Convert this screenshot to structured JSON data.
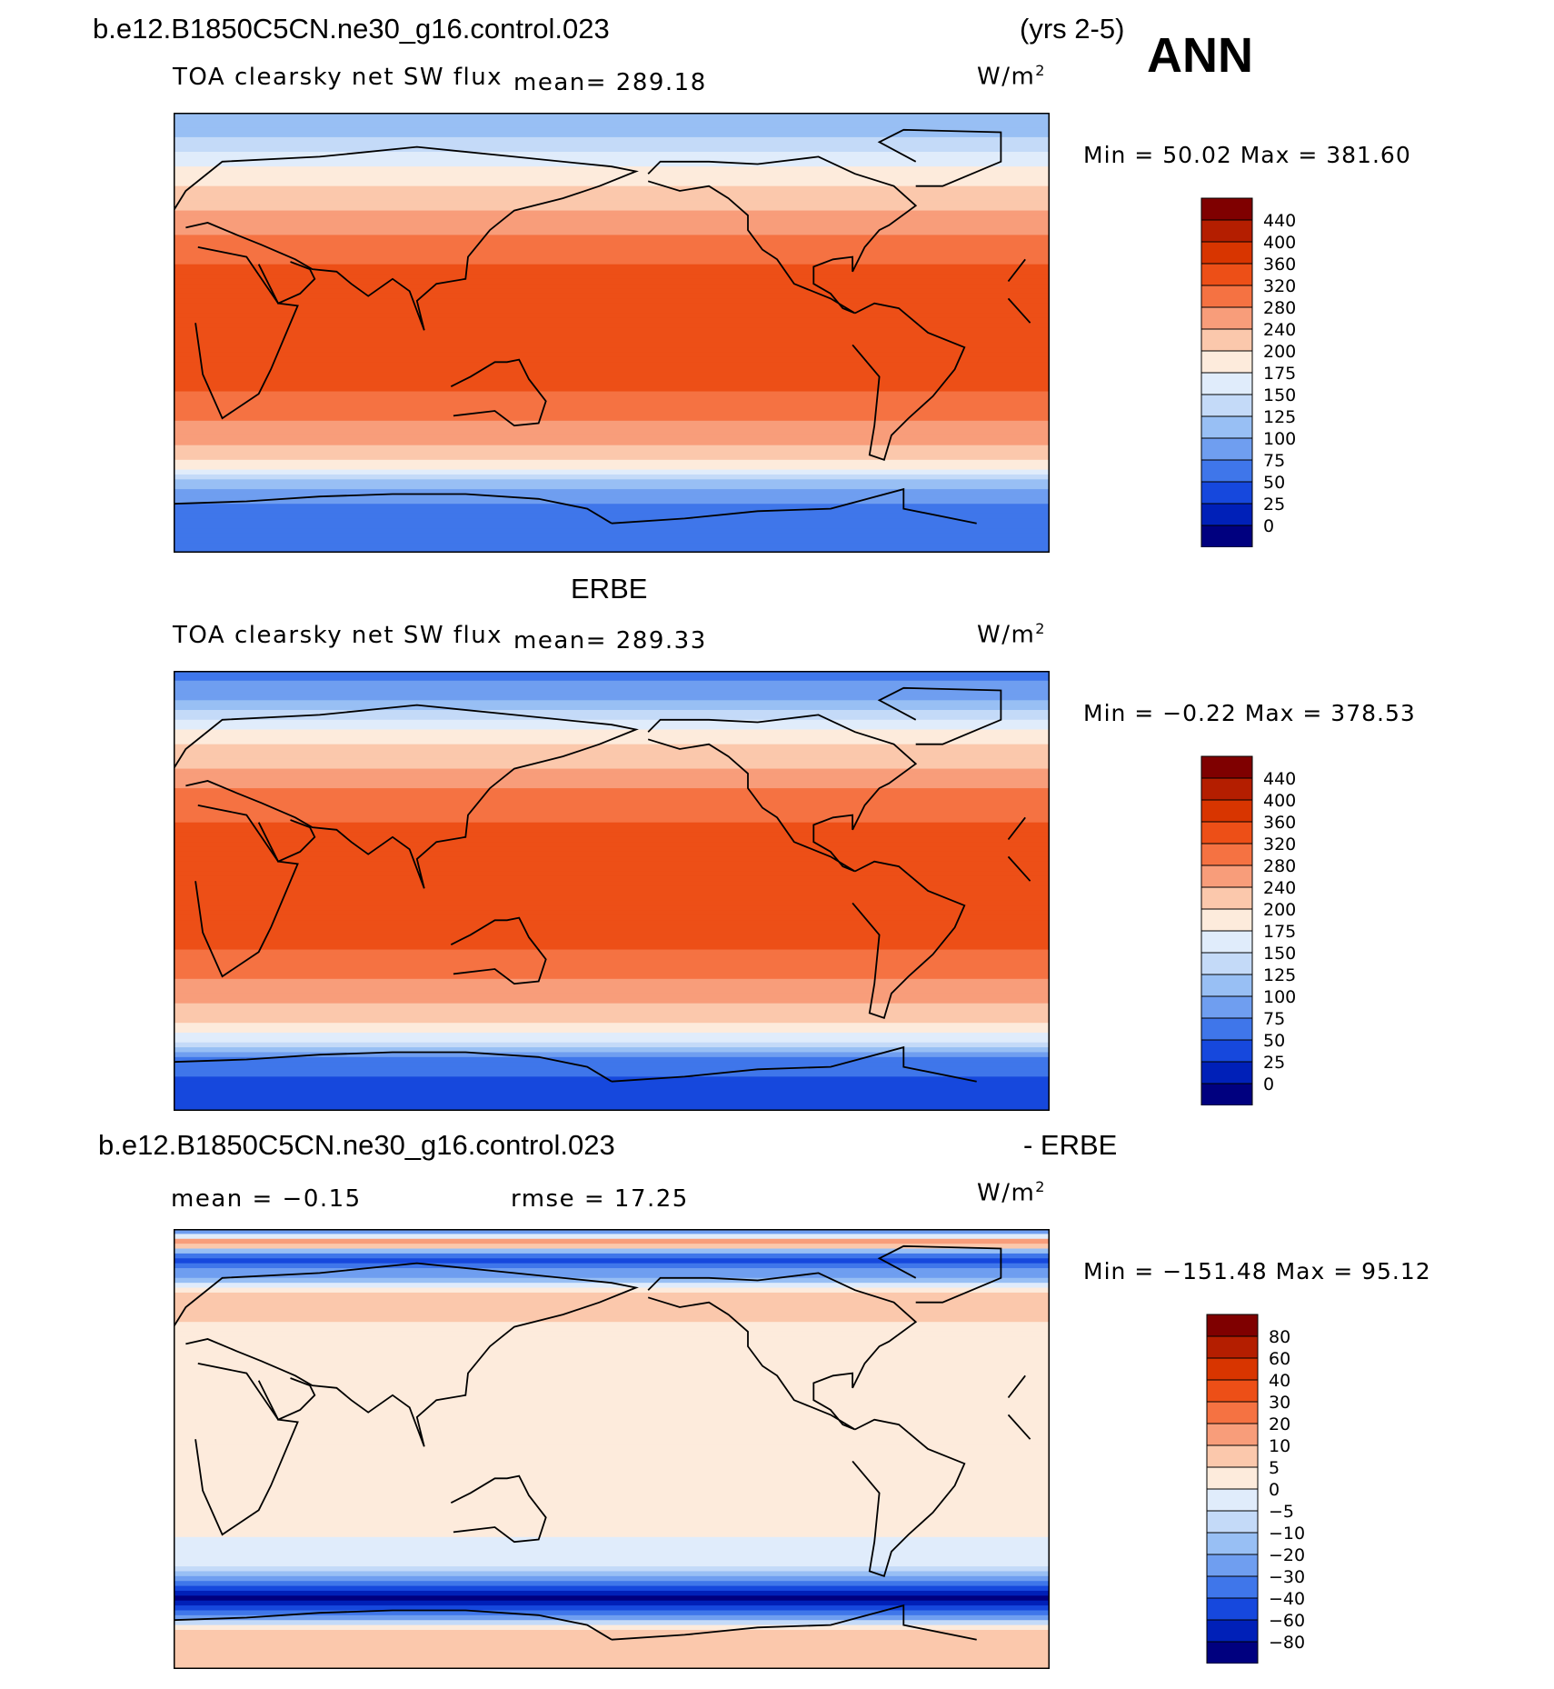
{
  "header": {
    "case_name": "b.e12.B1850C5CN.ne30_g16.control.023",
    "years": "(yrs 2-5)",
    "season": "ANN"
  },
  "panels": [
    {
      "id": "model",
      "heading": "",
      "variable": "TOA clearsky net SW flux",
      "mean_text": "mean=  289.18",
      "units_base": "W/m",
      "units_exp": "2",
      "minmax_text": "Min  =   50.02  Max  =  381.60"
    },
    {
      "id": "obs",
      "heading": "ERBE",
      "variable": "TOA clearsky net SW flux",
      "mean_text": "mean=  289.33",
      "units_base": "W/m",
      "units_exp": "2",
      "minmax_text": "Min  =   −0.22  Max  =  378.53"
    },
    {
      "id": "diff",
      "heading_left": "b.e12.B1850C5CN.ne30_g16.control.023",
      "heading_right": "- ERBE",
      "mean_text": "mean  =   −0.15",
      "rmse_text": "rmse  =   17.25",
      "units_base": "W/m",
      "units_exp": "2",
      "minmax_text": "Min  = −151.48  Max  =   95.12"
    }
  ],
  "chart_data": [
    {
      "type": "heatmap",
      "title": "TOA clearsky net SW flux",
      "units": "W/m2",
      "mean": 289.18,
      "min": 50.02,
      "max": 381.6,
      "colorbar_levels": [
        "440",
        "400",
        "360",
        "320",
        "280",
        "240",
        "200",
        "175",
        "150",
        "125",
        "100",
        "75",
        "50",
        "25",
        "0"
      ],
      "colorbar_colors": [
        "#7f0000",
        "#b41e00",
        "#d83500",
        "#ed4f17",
        "#f57242",
        "#f89d7a",
        "#fbc8ac",
        "#fdebdc",
        "#e0ecfb",
        "#c4daf8",
        "#98bff4",
        "#6f9ef0",
        "#3f76ea",
        "#1648dd",
        "#0020b8",
        "#00007f"
      ],
      "latitude_profile": [
        {
          "lat": 90,
          "value": 110
        },
        {
          "lat": 80,
          "value": 125
        },
        {
          "lat": 72,
          "value": 160
        },
        {
          "lat": 64,
          "value": 190
        },
        {
          "lat": 56,
          "value": 215
        },
        {
          "lat": 48,
          "value": 245
        },
        {
          "lat": 40,
          "value": 280
        },
        {
          "lat": 32,
          "value": 310
        },
        {
          "lat": 24,
          "value": 330
        },
        {
          "lat": 16,
          "value": 345
        },
        {
          "lat": 8,
          "value": 350
        },
        {
          "lat": 0,
          "value": 350
        },
        {
          "lat": -8,
          "value": 348
        },
        {
          "lat": -16,
          "value": 340
        },
        {
          "lat": -24,
          "value": 320
        },
        {
          "lat": -32,
          "value": 300
        },
        {
          "lat": -40,
          "value": 265
        },
        {
          "lat": -48,
          "value": 225
        },
        {
          "lat": -56,
          "value": 180
        },
        {
          "lat": -62,
          "value": 110
        },
        {
          "lat": -70,
          "value": 75
        },
        {
          "lat": -80,
          "value": 65
        },
        {
          "lat": -90,
          "value": 60
        }
      ]
    },
    {
      "type": "heatmap",
      "title": "TOA clearsky net SW flux",
      "subtitle": "ERBE",
      "units": "W/m2",
      "mean": 289.33,
      "min": -0.22,
      "max": 378.53,
      "colorbar_levels": [
        "440",
        "400",
        "360",
        "320",
        "280",
        "240",
        "200",
        "175",
        "150",
        "125",
        "100",
        "75",
        "50",
        "25",
        "0"
      ],
      "colorbar_colors": [
        "#7f0000",
        "#b41e00",
        "#d83500",
        "#ed4f17",
        "#f57242",
        "#f89d7a",
        "#fbc8ac",
        "#fdebdc",
        "#e0ecfb",
        "#c4daf8",
        "#98bff4",
        "#6f9ef0",
        "#3f76ea",
        "#1648dd",
        "#0020b8",
        "#00007f"
      ],
      "latitude_profile": [
        {
          "lat": 90,
          "value": 60
        },
        {
          "lat": 80,
          "value": 90
        },
        {
          "lat": 72,
          "value": 140
        },
        {
          "lat": 64,
          "value": 180
        },
        {
          "lat": 56,
          "value": 215
        },
        {
          "lat": 48,
          "value": 250
        },
        {
          "lat": 40,
          "value": 285
        },
        {
          "lat": 32,
          "value": 312
        },
        {
          "lat": 24,
          "value": 330
        },
        {
          "lat": 16,
          "value": 345
        },
        {
          "lat": 8,
          "value": 352
        },
        {
          "lat": 0,
          "value": 352
        },
        {
          "lat": -8,
          "value": 350
        },
        {
          "lat": -16,
          "value": 340
        },
        {
          "lat": -24,
          "value": 322
        },
        {
          "lat": -32,
          "value": 300
        },
        {
          "lat": -40,
          "value": 265
        },
        {
          "lat": -48,
          "value": 225
        },
        {
          "lat": -56,
          "value": 185
        },
        {
          "lat": -62,
          "value": 150
        },
        {
          "lat": -70,
          "value": 60
        },
        {
          "lat": -80,
          "value": 45
        },
        {
          "lat": -90,
          "value": 40
        }
      ]
    },
    {
      "type": "heatmap",
      "title": "b.e12.B1850C5CN.ne30_g16.control.023 - ERBE",
      "units": "W/m2",
      "mean": -0.15,
      "rmse": 17.25,
      "min": -151.48,
      "max": 95.12,
      "colorbar_levels": [
        "80",
        "60",
        "40",
        "30",
        "20",
        "10",
        "5",
        "0",
        "−5",
        "−10",
        "−20",
        "−30",
        "−40",
        "−60",
        "−80"
      ],
      "colorbar_colors": [
        "#7f0000",
        "#b41e00",
        "#d83500",
        "#ed4f17",
        "#f57242",
        "#f89d7a",
        "#fbc8ac",
        "#fdebdc",
        "#e0ecfb",
        "#c4daf8",
        "#98bff4",
        "#6f9ef0",
        "#3f76ea",
        "#1648dd",
        "#0020b8",
        "#00007f"
      ],
      "latitude_profile": [
        {
          "lat": 90,
          "value": -30
        },
        {
          "lat": 84,
          "value": 20
        },
        {
          "lat": 78,
          "value": -45
        },
        {
          "lat": 72,
          "value": -25
        },
        {
          "lat": 64,
          "value": 8
        },
        {
          "lat": 56,
          "value": 6
        },
        {
          "lat": 48,
          "value": 4
        },
        {
          "lat": 40,
          "value": 4
        },
        {
          "lat": 32,
          "value": 3
        },
        {
          "lat": 24,
          "value": 3
        },
        {
          "lat": 16,
          "value": 4
        },
        {
          "lat": 8,
          "value": 3
        },
        {
          "lat": 0,
          "value": 3
        },
        {
          "lat": -8,
          "value": 4
        },
        {
          "lat": -16,
          "value": 4
        },
        {
          "lat": -24,
          "value": 3
        },
        {
          "lat": -32,
          "value": 3
        },
        {
          "lat": -40,
          "value": -3
        },
        {
          "lat": -48,
          "value": -4
        },
        {
          "lat": -54,
          "value": -30
        },
        {
          "lat": -60,
          "value": -90
        },
        {
          "lat": -66,
          "value": -40
        },
        {
          "lat": -74,
          "value": 8
        },
        {
          "lat": -82,
          "value": 6
        },
        {
          "lat": -90,
          "value": 5
        }
      ]
    }
  ]
}
